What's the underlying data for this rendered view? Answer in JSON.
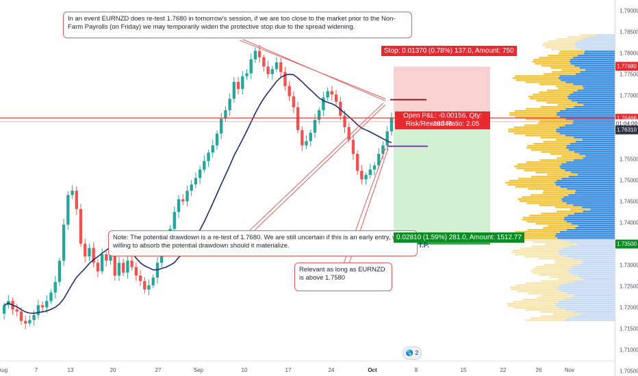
{
  "chart_data": {
    "type": "candlestick",
    "symbol": "EURNZD",
    "y_axis": {
      "range": [
        1.7038,
        1.7925
      ],
      "tick_labels": [
        "1.79000",
        "1.78500",
        "1.78000",
        "1.77680",
        "1.77500",
        "1.77000",
        "1.76466",
        "1.76310",
        "1.75500",
        "1.75000",
        "1.74500",
        "1.74000",
        "1.73500",
        "1.73000",
        "1.72500",
        "1.72000",
        "1.71500",
        "1.71000",
        "1.70500"
      ]
    },
    "x_axis": {
      "tick_labels": [
        "Aug",
        "7",
        "13",
        "20",
        "27",
        "Sep",
        "10",
        "17",
        "24",
        "Oct",
        "8",
        "15",
        "22",
        "26",
        "Nov"
      ]
    },
    "price_tags": [
      {
        "label": "1.77680",
        "kind": "stop"
      },
      {
        "label": "1.76466",
        "kind": "last"
      },
      {
        "label": "01:04:09",
        "kind": "timer"
      },
      {
        "label": "1.76310",
        "kind": "prev"
      },
      {
        "label": "1.73500",
        "kind": "target"
      }
    ],
    "key_levels": {
      "current": 1.76466,
      "retest": 1.768,
      "support": 1.758,
      "entry": 1.7631,
      "stop": 1.7768,
      "target": 1.735
    },
    "position": {
      "stop_label": "Stop: 0.01370 (0.78%) 137.0, Amount: 750",
      "target_label": "0.02810 (1.59%) 281.0, Amount: 1512.77",
      "open_pnl": "Open P&L: -0.00156, Qty: 18248",
      "rr_ratio": "Risk/Reward Ratio: 2.05"
    },
    "annotations": [
      "In an event EURNZD does re-test 1.7680 in tomorrow's session, if we are too close to the market prior to the Non-Farm Payrolls (on Friday) we may temporarily widen the protective stop due to the spread widening.",
      "Note: The potential drawdown is a re-test of 1.7680. We are still uncertain if this is an early entry, we are willing to absorb the potential drawdown should it materialize.",
      "Relevant as long as EURNZD is above 1.7580",
      "T.P."
    ],
    "series": [
      {
        "name": "candles",
        "closes": [
          1.7205,
          1.7215,
          1.7195,
          1.719,
          1.7168,
          1.7162,
          1.717,
          1.7182,
          1.7205,
          1.72,
          1.7215,
          1.7235,
          1.726,
          1.731,
          1.7395,
          1.7465,
          1.7475,
          1.7432,
          1.735,
          1.732,
          1.734,
          1.7305,
          1.7285,
          1.7325,
          1.731,
          1.7335,
          1.7275,
          1.7305,
          1.7282,
          1.731,
          1.7295,
          1.7275,
          1.7262,
          1.7242,
          1.7252,
          1.727,
          1.7305,
          1.7335,
          1.7365,
          1.7385,
          1.7425,
          1.7455,
          1.745,
          1.7475,
          1.749,
          1.7505,
          1.7525,
          1.7545,
          1.7565,
          1.7582,
          1.761,
          1.7645,
          1.7665,
          1.7692,
          1.7732,
          1.7715,
          1.7745,
          1.7752,
          1.7785,
          1.7805,
          1.779,
          1.7768,
          1.775,
          1.7762,
          1.7778,
          1.7755,
          1.7722,
          1.7698,
          1.7672,
          1.7618,
          1.7582,
          1.7592,
          1.7612,
          1.7642,
          1.7665,
          1.7695,
          1.771,
          1.7702,
          1.7685,
          1.7652,
          1.7625,
          1.7595,
          1.7562,
          1.7522,
          1.7502,
          1.7512,
          1.7525,
          1.7535,
          1.7562,
          1.7582,
          1.7615,
          1.7648
        ]
      },
      {
        "name": "moving average",
        "kind": "line"
      }
    ],
    "volume_profile": "horizontal, right side"
  }
}
